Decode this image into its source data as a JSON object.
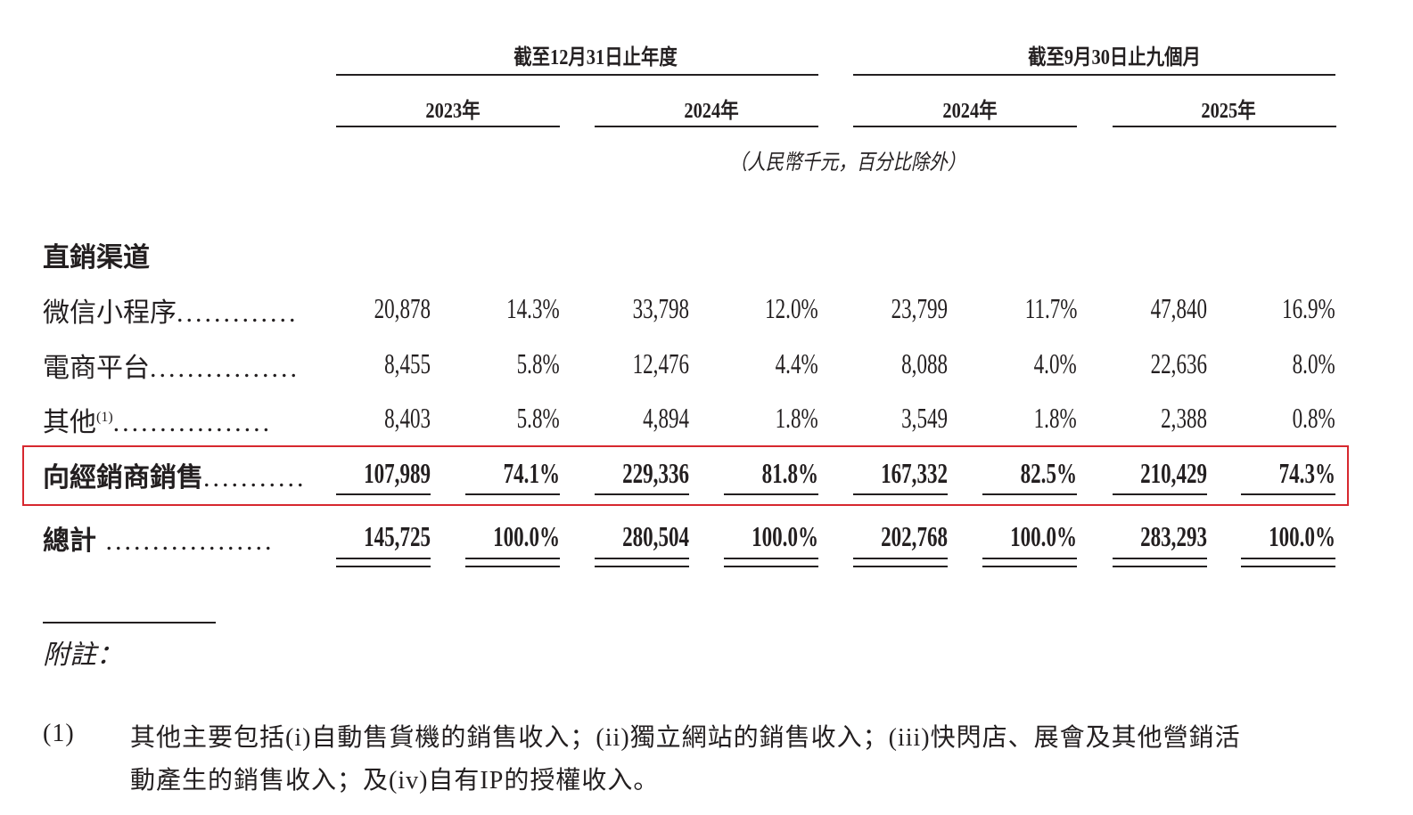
{
  "header": {
    "period_groups": [
      "截至12月31日止年度",
      "截至9月30日止九個月"
    ],
    "years": [
      "2023年",
      "2024年",
      "2024年",
      "2025年"
    ],
    "unit_note": "（人民幣千元，百分比除外）"
  },
  "section_title": "直銷渠道",
  "rows": [
    {
      "label": "微信小程序",
      "footnote": "",
      "bold": false,
      "values": [
        "20,878",
        "14.3%",
        "33,798",
        "12.0%",
        "23,799",
        "11.7%",
        "47,840",
        "16.9%"
      ]
    },
    {
      "label": "電商平台",
      "footnote": "",
      "bold": false,
      "values": [
        "8,455",
        "5.8%",
        "12,476",
        "4.4%",
        "8,088",
        "4.0%",
        "22,636",
        "8.0%"
      ]
    },
    {
      "label": "其他",
      "footnote": "(1)",
      "bold": false,
      "values": [
        "8,403",
        "5.8%",
        "4,894",
        "1.8%",
        "3,549",
        "1.8%",
        "2,388",
        "0.8%"
      ]
    },
    {
      "label": "向經銷商銷售",
      "footnote": "",
      "bold": true,
      "highlighted": true,
      "values": [
        "107,989",
        "74.1%",
        "229,336",
        "81.8%",
        "167,332",
        "82.5%",
        "210,429",
        "74.3%"
      ]
    },
    {
      "label": "總計",
      "footnote": "",
      "bold": true,
      "values": [
        "145,725",
        "100.0%",
        "280,504",
        "100.0%",
        "202,768",
        "100.0%",
        "283,293",
        "100.0%"
      ]
    }
  ],
  "notes": {
    "title": "附註：",
    "items": [
      {
        "marker": "(1)",
        "lines": [
          "其他主要包括(i)自動售貨機的銷售收入；(ii)獨立網站的銷售收入；(iii)快閃店、展會及其他營銷活",
          "動產生的銷售收入；及(iv)自有IP的授權收入。"
        ]
      }
    ]
  },
  "colors": {
    "highlight_box": "#d7282f",
    "text": "#231f20"
  }
}
